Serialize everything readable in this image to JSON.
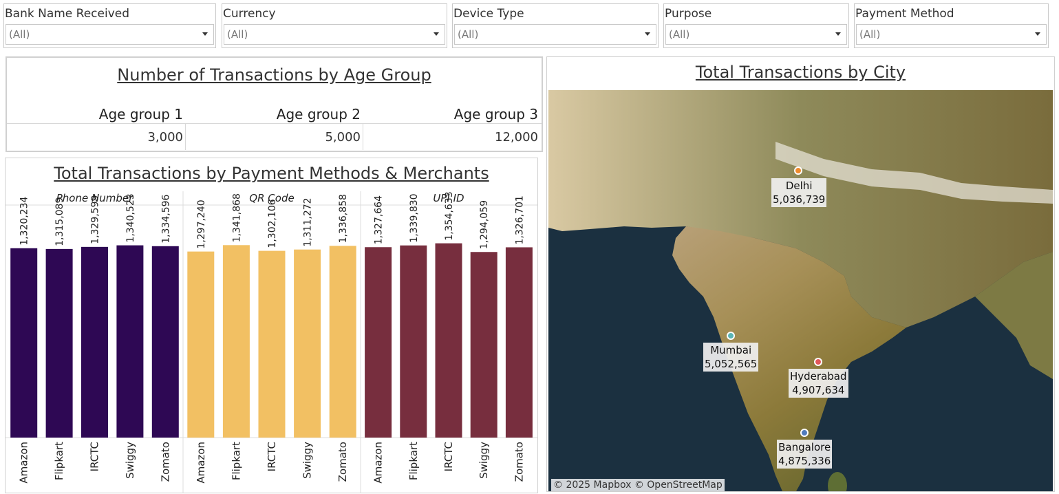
{
  "filters": [
    {
      "label": "Bank Name Received",
      "value": "(All)"
    },
    {
      "label": "Currency",
      "value": "(All)"
    },
    {
      "label": "Device Type",
      "value": "(All)"
    },
    {
      "label": "Purpose",
      "value": "(All)"
    },
    {
      "label": "Payment Method",
      "value": "(All)"
    }
  ],
  "age_panel": {
    "title": "Number of Transactions by Age Group",
    "groups": [
      {
        "label": "Age group 1",
        "value": "3,000"
      },
      {
        "label": "Age group 2",
        "value": "5,000"
      },
      {
        "label": "Age group 3",
        "value": "12,000"
      }
    ]
  },
  "payment_panel": {
    "title": "Total Transactions by Payment  Methods & Merchants"
  },
  "chart_data": {
    "type": "bar",
    "title": "Total Transactions by Payment  Methods & Merchants",
    "groups": [
      "Phone Number",
      "QR Code",
      "UPI ID"
    ],
    "categories": [
      "Amazon",
      "Flipkart",
      "IRCTC",
      "Swiggy",
      "Zomato"
    ],
    "series": [
      {
        "name": "Phone Number",
        "values": [
          1320234,
          1315089,
          1329599,
          1340523,
          1334596
        ],
        "labels": [
          "1,320,234",
          "1,315,089",
          "1,329,599",
          "1,340,523",
          "1,334,596"
        ]
      },
      {
        "name": "QR Code",
        "values": [
          1297240,
          1341868,
          1302106,
          1311272,
          1336858
        ],
        "labels": [
          "1,297,240",
          "1,341,868",
          "1,302,106",
          "1,311,272",
          "1,336,858"
        ]
      },
      {
        "name": "UPI ID",
        "values": [
          1327664,
          1339830,
          1354633,
          1294059,
          1326701
        ],
        "labels": [
          "1,327,664",
          "1,339,830",
          "1,354,633",
          "1,294,059",
          "1,326,701"
        ]
      }
    ],
    "colors": [
      "#2e0854",
      "#f2c063",
      "#772e3e"
    ],
    "ylim": [
      0,
      1420000
    ]
  },
  "map_panel": {
    "title": "Total Transactions by City",
    "cities": [
      {
        "name": "Delhi",
        "value": "5,036,739",
        "color": "#ee8a2c"
      },
      {
        "name": "Mumbai",
        "value": "5,052,565",
        "color": "#5bb5b5"
      },
      {
        "name": "Hyderabad",
        "value": "4,907,634",
        "color": "#e2575a"
      },
      {
        "name": "Bangalore",
        "value": "4,875,336",
        "color": "#4f7bbd"
      }
    ],
    "copyright": "© 2025 Mapbox © OpenStreetMap"
  }
}
